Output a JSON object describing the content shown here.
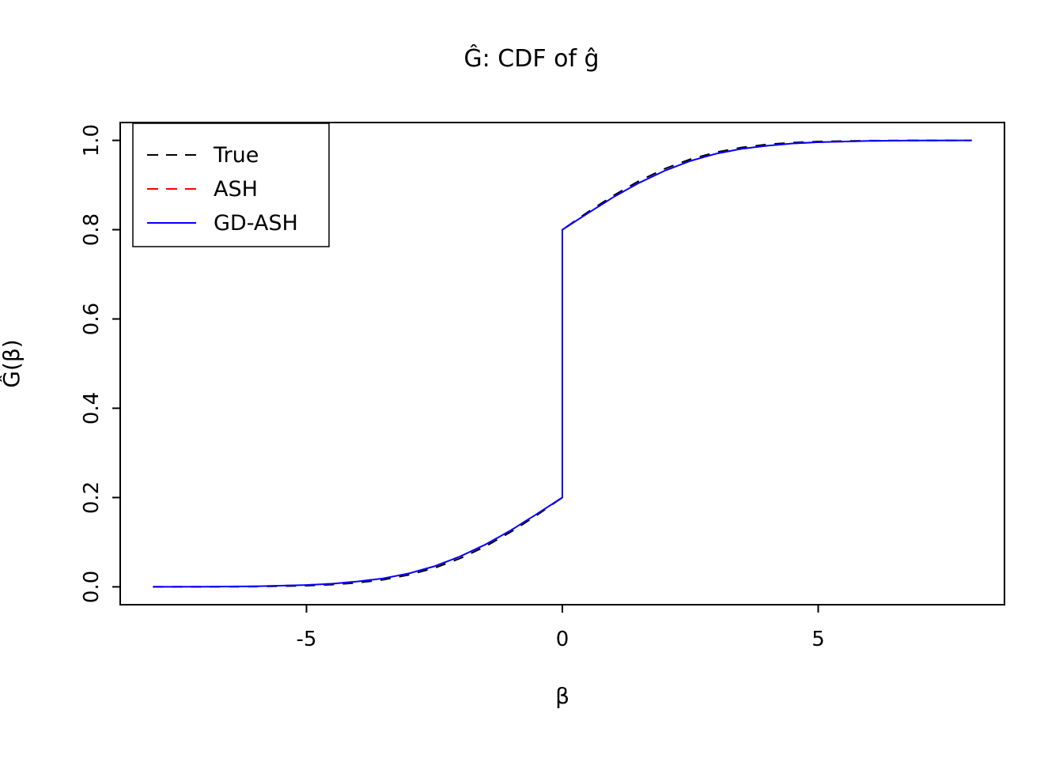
{
  "title": "Ĝ: CDF of ĝ",
  "x_axis": {
    "label": "β",
    "tick_labels": [
      "-5",
      "0",
      "5"
    ]
  },
  "y_axis": {
    "label": "Ĝ(β)",
    "tick_labels": [
      "0.0",
      "0.2",
      "0.4",
      "0.6",
      "0.8",
      "1.0"
    ]
  },
  "legend": {
    "position": "topleft",
    "items": [
      {
        "label": "True",
        "color": "#000000",
        "style": "dashed"
      },
      {
        "label": "ASH",
        "color": "#FF0000",
        "style": "dashed"
      },
      {
        "label": "GD-ASH",
        "color": "#0000FF",
        "style": "solid"
      }
    ]
  },
  "chart_data": {
    "type": "line",
    "title": "Ĝ: CDF of ĝ",
    "xlabel": "β",
    "ylabel": "Ĝ(β)",
    "xlim": [
      -8.64,
      8.64
    ],
    "ylim": [
      -0.04,
      1.04
    ],
    "x_ticks": [
      -5,
      0,
      5
    ],
    "x_tick_labels": [
      "-5",
      "0",
      "5"
    ],
    "y_ticks": [
      0.0,
      0.2,
      0.4,
      0.6,
      0.8,
      1.0
    ],
    "y_tick_labels": [
      "0.0",
      "0.2",
      "0.4",
      "0.6",
      "0.8",
      "1.0"
    ],
    "grid": false,
    "legend_position": "topleft",
    "description": "CDF with smooth tails and a point-mass jump at beta=0 from 0.2 to 0.8; the three estimates nearly coincide",
    "x": [
      -8,
      -7,
      -6,
      -5,
      -4.5,
      -4,
      -3.5,
      -3,
      -2.5,
      -2,
      -1.5,
      -1,
      -0.5,
      0,
      0,
      0.5,
      1,
      1.5,
      2,
      2.5,
      3,
      3.5,
      4,
      4.5,
      5,
      6,
      7,
      8
    ],
    "series": [
      {
        "name": "True",
        "color": "#000000",
        "style": "dashed",
        "y": [
          0.0,
          0.0001,
          0.0005,
          0.0025,
          0.005,
          0.0091,
          0.016,
          0.0267,
          0.0422,
          0.0635,
          0.0906,
          0.1234,
          0.1605,
          0.2,
          0.8,
          0.8395,
          0.8766,
          0.9094,
          0.9365,
          0.9578,
          0.9733,
          0.984,
          0.9909,
          0.995,
          0.9975,
          0.9995,
          0.9999,
          1.0
        ]
      },
      {
        "name": "ASH",
        "color": "#FF0000",
        "style": "dashed",
        "y": [
          0.0001,
          0.0003,
          0.001,
          0.004,
          0.007,
          0.012,
          0.019,
          0.03,
          0.046,
          0.068,
          0.095,
          0.127,
          0.163,
          0.2,
          0.8,
          0.837,
          0.873,
          0.905,
          0.932,
          0.954,
          0.97,
          0.981,
          0.988,
          0.993,
          0.996,
          0.999,
          0.9997,
          0.9999
        ]
      },
      {
        "name": "GD-ASH",
        "color": "#0000FF",
        "style": "solid",
        "y": [
          0.0001,
          0.0003,
          0.001,
          0.004,
          0.007,
          0.012,
          0.019,
          0.03,
          0.046,
          0.068,
          0.095,
          0.127,
          0.163,
          0.2,
          0.8,
          0.837,
          0.873,
          0.905,
          0.932,
          0.954,
          0.97,
          0.981,
          0.988,
          0.993,
          0.996,
          0.999,
          0.9997,
          0.9999
        ]
      }
    ]
  }
}
